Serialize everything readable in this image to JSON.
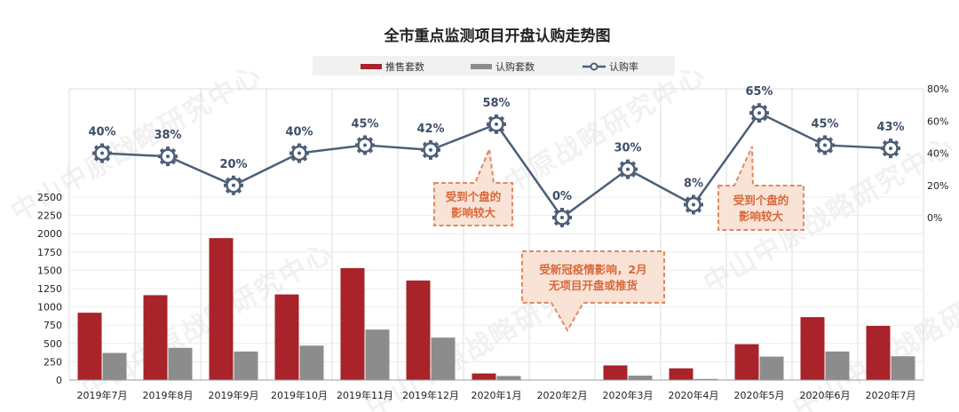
{
  "watermark": "中山中原战略研究中心",
  "chart_data": {
    "type": "bar",
    "title": "全市重点监测项目开盘认购走势图",
    "categories": [
      "2019年7月",
      "2019年8月",
      "2019年9月",
      "2019年10月",
      "2019年11月",
      "2019年12月",
      "2020年1月",
      "2020年2月",
      "2020年3月",
      "2020年4月",
      "2020年5月",
      "2020年6月",
      "2020年7月"
    ],
    "series": [
      {
        "name": "推售套数",
        "kind": "bar",
        "axis": "left",
        "color": "#a8232a",
        "values": [
          920,
          1160,
          1940,
          1170,
          1530,
          1360,
          90,
          0,
          200,
          160,
          490,
          860,
          740
        ]
      },
      {
        "name": "认购套数",
        "kind": "bar",
        "axis": "left",
        "color": "#8c8c8c",
        "values": [
          370,
          440,
          390,
          470,
          690,
          580,
          55,
          0,
          60,
          15,
          320,
          390,
          325
        ]
      },
      {
        "name": "认购率",
        "kind": "line",
        "axis": "right",
        "color": "#4d5f77",
        "values": [
          40,
          38,
          20,
          40,
          45,
          42,
          58,
          0,
          30,
          8,
          65,
          45,
          43
        ],
        "labels": [
          "40%",
          "38%",
          "20%",
          "40%",
          "45%",
          "42%",
          "58%",
          "0%",
          "30%",
          "8%",
          "65%",
          "45%",
          "43%"
        ]
      }
    ],
    "left_axis": {
      "ticks": [
        "0",
        "250",
        "500",
        "750",
        "1000",
        "1250",
        "1500",
        "1750",
        "2000",
        "2250",
        "2500"
      ],
      "range": [
        0,
        2500
      ]
    },
    "right_axis": {
      "ticks": [
        "0%",
        "20%",
        "40%",
        "60%",
        "80%"
      ],
      "range": [
        0,
        80
      ]
    },
    "legend_position": "top",
    "grid": true,
    "annotations": [
      {
        "text_lines": [
          "受到个盘的",
          "影响较大"
        ],
        "points_to": "2020年1月"
      },
      {
        "text_lines": [
          "受新冠疫情影响，2月",
          "无项目开盘或推货"
        ],
        "points_to": "2020年2月"
      },
      {
        "text_lines": [
          "受到个盘的",
          "影响较大"
        ],
        "points_to": "2020年5月"
      }
    ]
  }
}
